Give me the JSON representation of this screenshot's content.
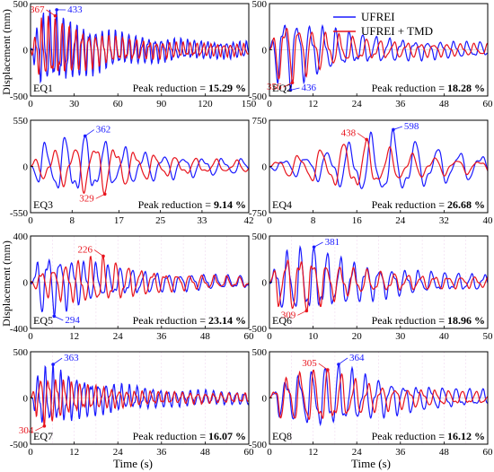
{
  "figure": {
    "ylabel": "Displacement (mm)",
    "xlabel": "Time (s)",
    "legend": [
      "UFREI",
      "UFREI + TMD"
    ],
    "peak_prefix": "Peak reduction = "
  },
  "colors": {
    "ufrei": "#1a1aff",
    "tmd": "#e8141d",
    "grid": "#f1d9ef",
    "axis": "#000000"
  },
  "chart_data": [
    {
      "type": "line",
      "label": "EQ1",
      "xlim": [
        0,
        150
      ],
      "ylim": [
        -500,
        500
      ],
      "xticks": [
        0,
        30,
        60,
        90,
        120,
        150
      ],
      "yticks": [
        -500,
        0,
        500
      ],
      "reduction": "15.29 %",
      "grid": false,
      "series": [
        {
          "name": "UFREI",
          "peak": {
            "t": 18,
            "v": 433,
            "label": "433"
          }
        },
        {
          "name": "UFREI + TMD",
          "peak": {
            "t": 17,
            "v": 367,
            "label": "367"
          }
        }
      ]
    },
    {
      "type": "line",
      "label": "EQ2",
      "xlim": [
        0,
        60
      ],
      "ylim": [
        -500,
        500
      ],
      "xticks": [
        0,
        12,
        24,
        36,
        48,
        60
      ],
      "yticks": [
        -500,
        0,
        500
      ],
      "reduction": "18.28 %",
      "grid": false,
      "series": [
        {
          "name": "UFREI",
          "peak": {
            "t": 5.8,
            "v": -436,
            "label": "436"
          }
        },
        {
          "name": "UFREI + TMD",
          "peak": {
            "t": 6.3,
            "v": -356,
            "label": "356"
          }
        }
      ]
    },
    {
      "type": "line",
      "label": "EQ3",
      "xlim": [
        0,
        42
      ],
      "ylim": [
        -550,
        550
      ],
      "xticks": [
        0,
        8,
        17,
        25,
        33,
        42
      ],
      "yticks": [
        -550,
        0,
        550
      ],
      "reduction": "9.14 %",
      "grid": false,
      "series": [
        {
          "name": "UFREI",
          "peak": {
            "t": 10.5,
            "v": 362,
            "label": "362"
          }
        },
        {
          "name": "UFREI + TMD",
          "peak": {
            "t": 14.3,
            "v": -329,
            "label": "329"
          }
        }
      ]
    },
    {
      "type": "line",
      "label": "EQ4",
      "xlim": [
        0,
        40
      ],
      "ylim": [
        -750,
        750
      ],
      "xticks": [
        0,
        8,
        16,
        24,
        32,
        40
      ],
      "yticks": [
        -750,
        0,
        750
      ],
      "reduction": "26.68 %",
      "grid": false,
      "series": [
        {
          "name": "UFREI",
          "peak": {
            "t": 22.7,
            "v": 598,
            "label": "598"
          }
        },
        {
          "name": "UFREI + TMD",
          "peak": {
            "t": 17.8,
            "v": 438,
            "label": "438"
          }
        }
      ]
    },
    {
      "type": "line",
      "label": "EQ5",
      "xlim": [
        0,
        60
      ],
      "ylim": [
        -400,
        400
      ],
      "xticks": [
        0,
        12,
        24,
        36,
        48,
        60
      ],
      "yticks": [
        -400,
        0,
        400
      ],
      "reduction": "23.14 %",
      "grid": true,
      "series": [
        {
          "name": "UFREI",
          "peak": {
            "t": 6.5,
            "v": -294,
            "label": "294"
          }
        },
        {
          "name": "UFREI + TMD",
          "peak": {
            "t": 20,
            "v": 226,
            "label": "226"
          }
        }
      ]
    },
    {
      "type": "line",
      "label": "EQ6",
      "xlim": [
        0,
        50
      ],
      "ylim": [
        -500,
        500
      ],
      "xticks": [
        0,
        10,
        20,
        30,
        40,
        50
      ],
      "yticks": [
        -500,
        0,
        500
      ],
      "reduction": "18.96 %",
      "grid": true,
      "series": [
        {
          "name": "UFREI",
          "peak": {
            "t": 10.2,
            "v": 381,
            "label": "381"
          }
        },
        {
          "name": "UFREI + TMD",
          "peak": {
            "t": 8.5,
            "v": -309,
            "label": "309"
          }
        }
      ]
    },
    {
      "type": "line",
      "label": "EQ7",
      "xlim": [
        0,
        60
      ],
      "ylim": [
        -500,
        500
      ],
      "xticks": [
        0,
        12,
        24,
        36,
        48,
        60
      ],
      "yticks": [
        -500,
        0,
        500
      ],
      "reduction": "16.07 %",
      "grid": true,
      "series": [
        {
          "name": "UFREI",
          "peak": {
            "t": 6.2,
            "v": 363,
            "label": "363"
          }
        },
        {
          "name": "UFREI + TMD",
          "peak": {
            "t": 3.8,
            "v": -304,
            "label": "304"
          }
        }
      ]
    },
    {
      "type": "line",
      "label": "EQ8",
      "xlim": [
        0,
        60
      ],
      "ylim": [
        -500,
        500
      ],
      "xticks": [
        0,
        12,
        24,
        36,
        48,
        60
      ],
      "yticks": [
        -500,
        0,
        500
      ],
      "reduction": "16.12 %",
      "grid": true,
      "series": [
        {
          "name": "UFREI",
          "peak": {
            "t": 19,
            "v": 364,
            "label": "364"
          }
        },
        {
          "name": "UFREI + TMD",
          "peak": {
            "t": 16,
            "v": 305,
            "label": "305"
          }
        }
      ]
    }
  ]
}
